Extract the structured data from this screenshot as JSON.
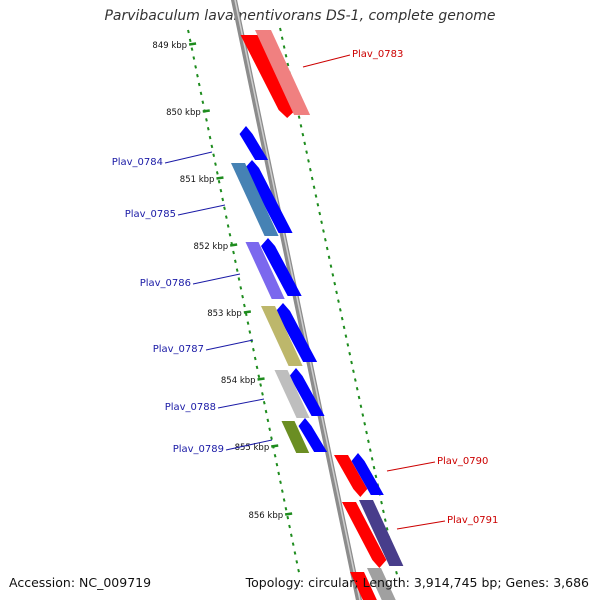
{
  "title": "Parvibaculum lavamentivorans DS-1, complete genome",
  "footer": {
    "accession": "Accession: NC_009719",
    "summary": "Topology: circular; Length: 3,914,745 bp; Genes: 3,686"
  },
  "colors": {
    "backbone": "#8c8c8c",
    "ticks": "#1e8c1e",
    "cds_forward": "#0000ff",
    "cds_reverse": "#ff0000",
    "label_blue": "#1a1aa6",
    "label_red": "#cc0000"
  },
  "scale_ticks": [
    {
      "label": "849 kbp"
    },
    {
      "label": "850 kbp"
    },
    {
      "label": "851 kbp"
    },
    {
      "label": "852 kbp"
    },
    {
      "label": "853 kbp"
    },
    {
      "label": "854 kbp"
    },
    {
      "label": "855 kbp"
    },
    {
      "label": "856 kbp"
    }
  ],
  "genes": [
    {
      "name": "Plav_0783",
      "color": "#ff0000"
    },
    {
      "name": "Plav_0784",
      "color": "#0000ff"
    },
    {
      "name": "Plav_0785",
      "color": "#0000ff"
    },
    {
      "name": "Plav_0786",
      "color": "#0000ff"
    },
    {
      "name": "Plav_0787",
      "color": "#0000ff"
    },
    {
      "name": "Plav_0788",
      "color": "#0000ff"
    },
    {
      "name": "Plav_0789",
      "color": "#0000ff"
    },
    {
      "name": "Plav_0790",
      "color": "#ff0000"
    },
    {
      "name": "Plav_0791",
      "color": "#ff0000"
    }
  ]
}
